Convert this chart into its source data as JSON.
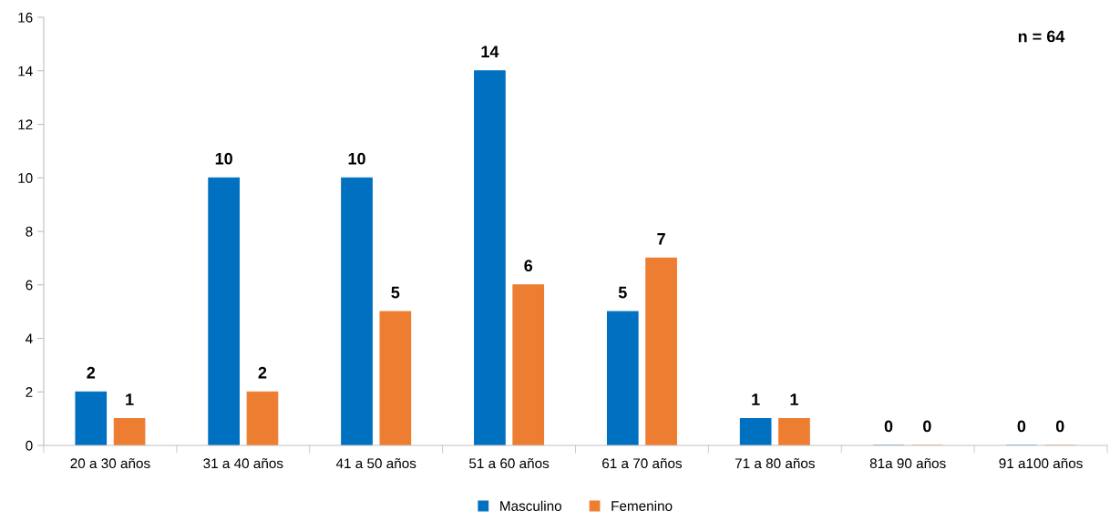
{
  "chart_data": {
    "type": "bar",
    "categories": [
      "20 a 30 años",
      "31 a 40 años",
      "41 a 50 años",
      "51 a 60 años",
      "61 a 70 años",
      "71 a 80 años",
      "81a 90 años",
      "91 a100 años"
    ],
    "series": [
      {
        "name": "Masculino",
        "color": "#0070c0",
        "values": [
          2,
          10,
          10,
          14,
          5,
          1,
          0,
          0
        ]
      },
      {
        "name": "Femenino",
        "color": "#ed7d31",
        "values": [
          1,
          2,
          5,
          6,
          7,
          1,
          0,
          0
        ]
      }
    ],
    "ylim": [
      0,
      16
    ],
    "yticks": [
      0,
      2,
      4,
      6,
      8,
      10,
      12,
      14,
      16
    ],
    "annotations": [
      "n = 64"
    ],
    "data_labels": true,
    "grid": false,
    "legend": "bottom"
  }
}
